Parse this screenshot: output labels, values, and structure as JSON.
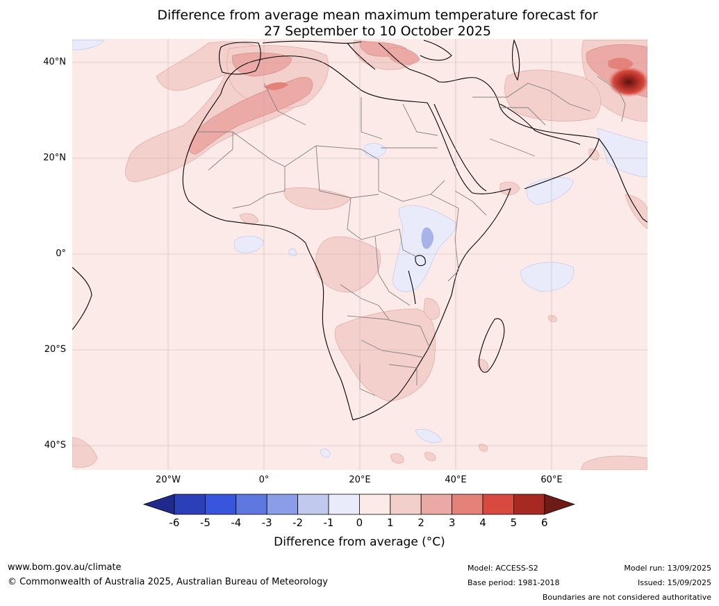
{
  "title": {
    "line1": "Difference from average mean maximum temperature forecast for",
    "line2": "27 September to 10 October 2025"
  },
  "lat_labels": [
    "40°N",
    "20°N",
    "0°",
    "20°S",
    "40°S"
  ],
  "lon_labels": [
    "20°W",
    "0°",
    "20°E",
    "40°E",
    "60°E"
  ],
  "colorbar": {
    "ticks": [
      "-6",
      "-5",
      "-4",
      "-3",
      "-2",
      "-1",
      "0",
      "1",
      "2",
      "3",
      "4",
      "5",
      "6"
    ],
    "colors": [
      "#1f2a8c",
      "#2b3fb8",
      "#3a55dd",
      "#5f78e0",
      "#8b9de6",
      "#c2c9ef",
      "#e9ebfa",
      "#fbeae8",
      "#f3cfcb",
      "#eba9a5",
      "#e48279",
      "#d84a3f",
      "#a62a22",
      "#6e1a16"
    ],
    "label": "Difference from average (°C)"
  },
  "footer": {
    "url": "www.bom.gov.au/climate",
    "copyright": "© Commonwealth of Australia 2025, Australian Bureau of Meteorology",
    "model": "Model: ACCESS-S2",
    "base_period": "Base period: 1981-2018",
    "model_run": "Model run: 13/09/2025",
    "issued": "Issued: 15/09/2025",
    "boundaries_note": "Boundaries are not considered authoritative"
  },
  "colors": {
    "sea_background": "#fbeae8",
    "warm_1_2": "#f3d0cc",
    "warm_2_3": "#ecaaa6",
    "warm_3_4": "#e48279",
    "cool_minus1_0": "#e9ebfa",
    "coastline": "#000000",
    "border": "#808080",
    "grid": "#d0b8b8"
  }
}
